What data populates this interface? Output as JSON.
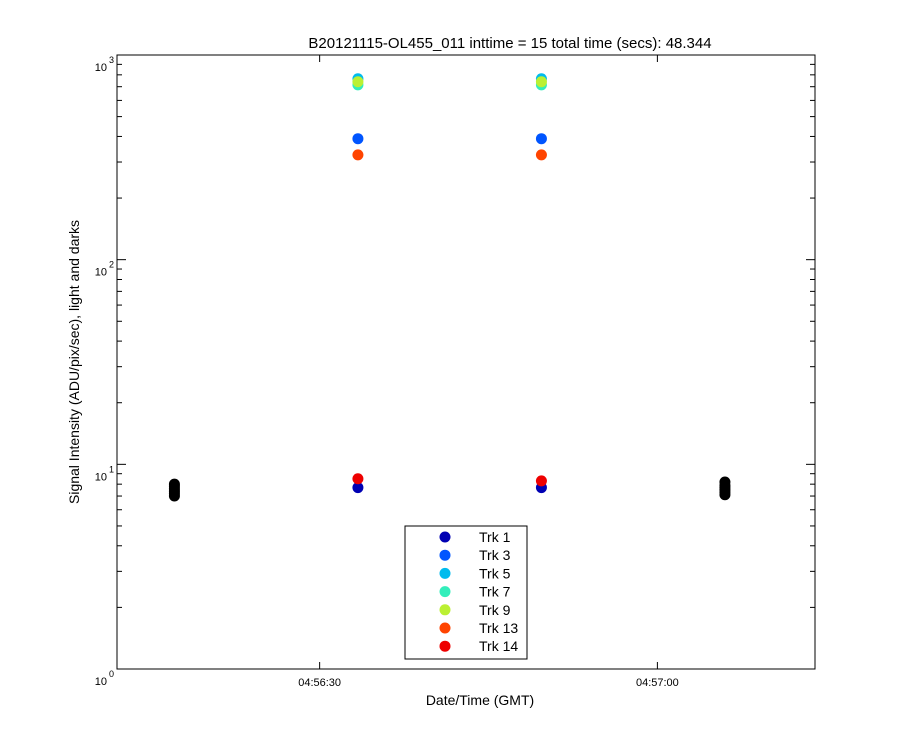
{
  "chart_data": {
    "type": "scatter",
    "title": "B20121115-OL455_011 inttime = 15 total time (secs): 48.344",
    "xlabel": "Date/Time (GMT)",
    "ylabel": "Signal Intensity (ADU/pix/sec), light and darks",
    "yscale": "log",
    "xlim": [
      "04:56:12",
      "04:57:14"
    ],
    "ylim": [
      1,
      1000
    ],
    "x_ticks": [
      {
        "t": "04:56:30",
        "label": "04:56:30"
      },
      {
        "t": "04:57:00",
        "label": "04:57:00"
      }
    ],
    "y_ticks": [
      {
        "value": 1,
        "base": "10",
        "exp": "0"
      },
      {
        "value": 10,
        "base": "10",
        "exp": "1"
      },
      {
        "value": 100,
        "base": "10",
        "exp": "2"
      },
      {
        "value": 1000,
        "base": "10",
        "exp": "3"
      }
    ],
    "grid": false,
    "legend": "bottom-center",
    "series": [
      {
        "name": "Trk 1",
        "color": "#0000b3",
        "points": [
          {
            "x": "04:56:33.4",
            "y": 7.7
          },
          {
            "x": "04:56:49.7",
            "y": 7.7
          }
        ]
      },
      {
        "name": "Trk 3",
        "color": "#0055ff",
        "points": [
          {
            "x": "04:56:33.4",
            "y": 390
          },
          {
            "x": "04:56:49.7",
            "y": 390
          }
        ]
      },
      {
        "name": "Trk 5",
        "color": "#00bbee",
        "points": [
          {
            "x": "04:56:33.4",
            "y": 765
          },
          {
            "x": "04:56:49.7",
            "y": 765
          }
        ]
      },
      {
        "name": "Trk 7",
        "color": "#33eebb",
        "points": [
          {
            "x": "04:56:33.4",
            "y": 715
          },
          {
            "x": "04:56:49.7",
            "y": 715
          }
        ]
      },
      {
        "name": "Trk 9",
        "color": "#bbf033",
        "points": [
          {
            "x": "04:56:33.4",
            "y": 740
          },
          {
            "x": "04:56:49.7",
            "y": 740
          }
        ]
      },
      {
        "name": "Trk 13",
        "color": "#ff4400",
        "points": [
          {
            "x": "04:56:33.4",
            "y": 325
          },
          {
            "x": "04:56:49.7",
            "y": 325
          }
        ]
      },
      {
        "name": "Trk 14",
        "color": "#ee0000",
        "points": [
          {
            "x": "04:56:33.4",
            "y": 8.5
          },
          {
            "x": "04:56:49.7",
            "y": 8.3
          }
        ]
      }
    ],
    "darks": {
      "color": "#000000",
      "points": [
        {
          "x": "04:56:17.1",
          "y": 7.0
        },
        {
          "x": "04:56:17.1",
          "y": 7.2
        },
        {
          "x": "04:56:17.1",
          "y": 7.4
        },
        {
          "x": "04:56:17.1",
          "y": 7.6
        },
        {
          "x": "04:56:17.1",
          "y": 7.8
        },
        {
          "x": "04:56:17.1",
          "y": 8.0
        },
        {
          "x": "04:57:06.0",
          "y": 7.1
        },
        {
          "x": "04:57:06.0",
          "y": 7.3
        },
        {
          "x": "04:57:06.0",
          "y": 7.5
        },
        {
          "x": "04:57:06.0",
          "y": 7.7
        },
        {
          "x": "04:57:06.0",
          "y": 7.9
        },
        {
          "x": "04:57:06.0",
          "y": 8.2
        }
      ]
    }
  }
}
